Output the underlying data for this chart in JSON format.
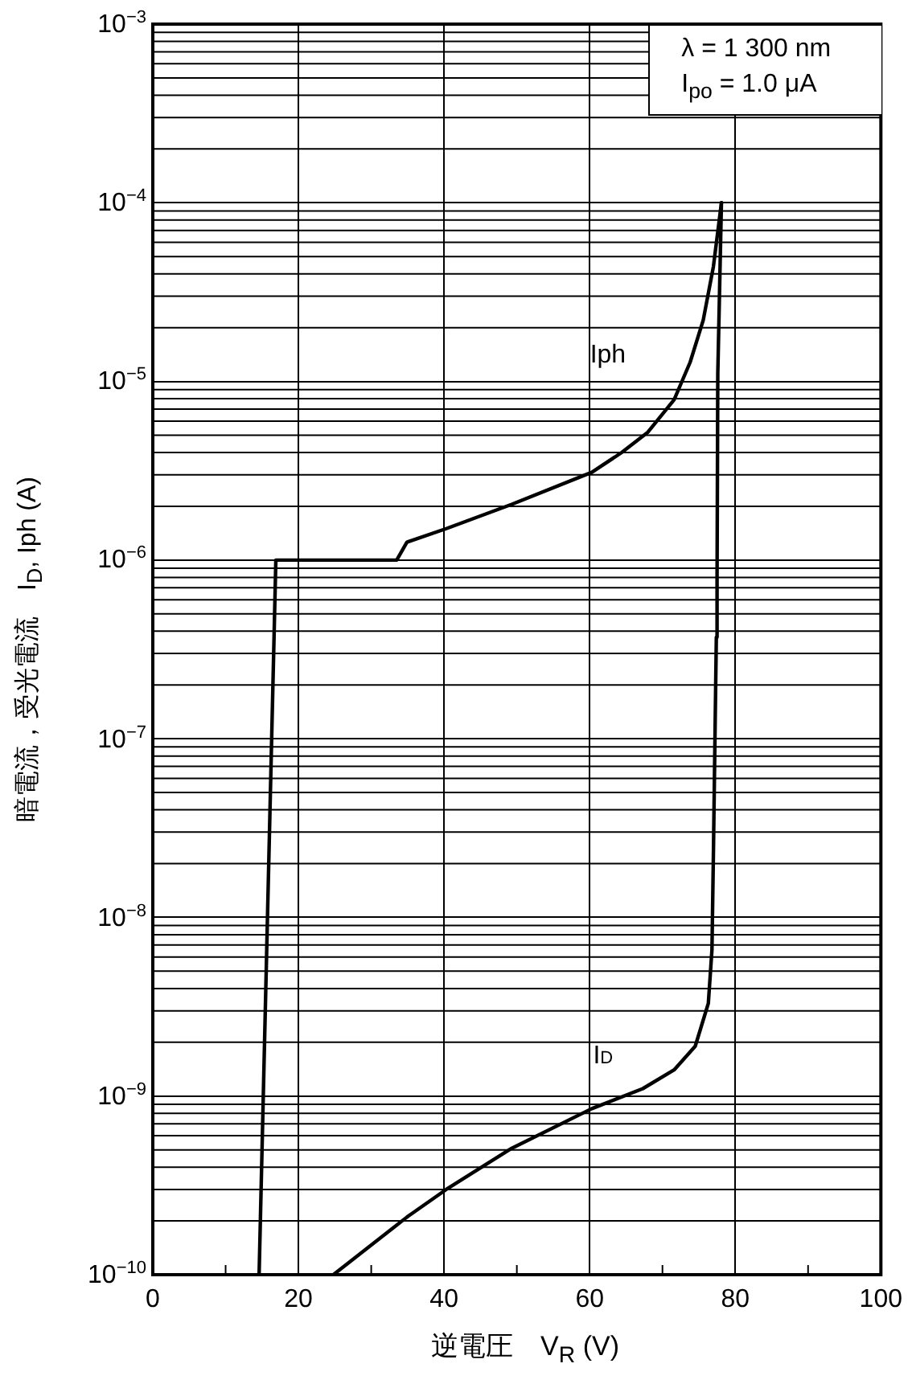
{
  "chart_data": {
    "type": "line",
    "xlabel": "逆電圧　V$_{R}$ (V)",
    "ylabel": "暗電流，受光電流　I$_{D}$, Iph (A)",
    "annotations": [
      "λ = 1 300 nm",
      "I$_{po}$ = 1.0 μA"
    ],
    "log": "y",
    "grid": true,
    "legend": false,
    "marker": "none",
    "line_style": "solid",
    "xlim": [
      0,
      100
    ],
    "xticks": [
      0,
      {
        "value": 10,
        "label": null
      },
      20,
      {
        "value": 30,
        "label": null
      },
      40,
      {
        "value": 50,
        "label": null
      },
      60,
      {
        "value": 70,
        "label": null
      },
      80,
      {
        "value": 90,
        "label": null
      },
      100
    ],
    "ylim": [
      1e-10,
      0.001
    ],
    "yticks": [
      {
        "value": 1e-10,
        "label": "10$^{−10}$"
      },
      {
        "value": 1e-09,
        "label": "10$^{−9}$"
      },
      {
        "value": 1e-08,
        "label": "10$^{−8}$"
      },
      {
        "value": 1e-07,
        "label": "10$^{−7}$"
      },
      {
        "value": 1e-06,
        "label": "10$^{−6}$"
      },
      {
        "value": 1e-05,
        "label": "10$^{−5}$"
      },
      {
        "value": 0.0001,
        "label": "10$^{−4}$"
      },
      {
        "value": 0.001,
        "label": "10$^{−3}$"
      }
    ],
    "series": [
      {
        "name": "Iph",
        "color": "#000000",
        "x": [
          14.6,
          16.9,
          33.5,
          34.9,
          40.3,
          49.3,
          60.3,
          64.4,
          68.0,
          71.6,
          73.8,
          75.6,
          77.0,
          78.1
        ],
        "values": [
          1e-10,
          1e-06,
          1e-06,
          1.26e-06,
          1.5e-06,
          2.05e-06,
          3.1e-06,
          4e-06,
          5.2e-06,
          7.9e-06,
          1.28e-05,
          2.2e-05,
          4.4e-05,
          0.0001
        ]
      },
      {
        "name": "I$_{D}$",
        "color": "#000000",
        "x": [
          24.8,
          34.9,
          40.3,
          49.3,
          60.3,
          67.3,
          71.6,
          74.5,
          76.3,
          76.8,
          77.0,
          77.4,
          77.5,
          77.6,
          78.1
        ],
        "values": [
          1e-10,
          2.1e-10,
          3e-10,
          5.1e-10,
          8.5e-10,
          1.1e-09,
          1.4e-09,
          1.9e-09,
          3.3e-09,
          6.6e-09,
          2.3e-08,
          3.7e-07,
          8e-07,
          1.1e-05,
          0.0001
        ]
      }
    ]
  }
}
